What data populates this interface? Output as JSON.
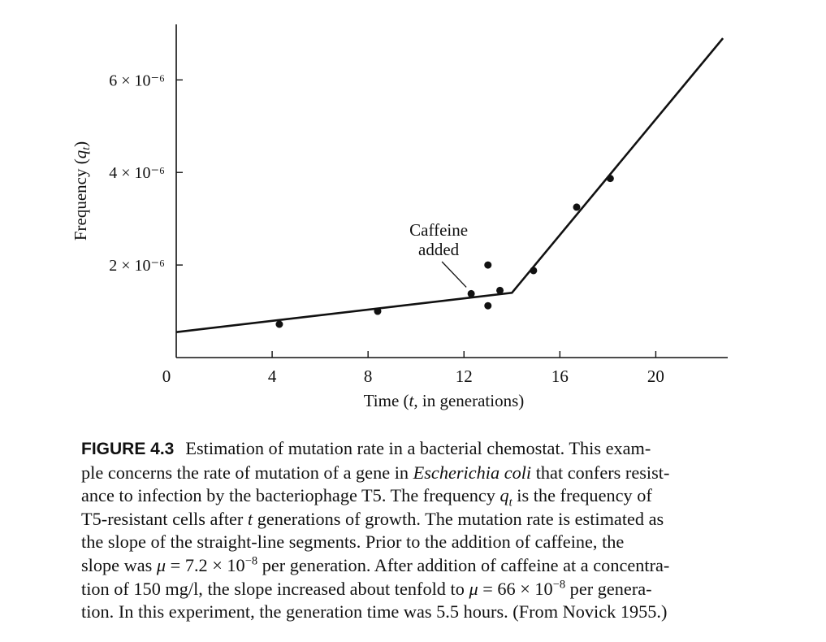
{
  "chart_data": {
    "type": "scatter",
    "title": "",
    "xlabel": "Time (t, in generations)",
    "ylabel": "Frequency (q_t)",
    "xlim": [
      0,
      23
    ],
    "ylim": [
      0,
      7.2e-06
    ],
    "x_ticks": [
      0,
      4,
      8,
      12,
      16,
      20
    ],
    "y_ticks": [
      {
        "value": 2e-06,
        "label": "2 × 10⁻⁶"
      },
      {
        "value": 4e-06,
        "label": "4 × 10⁻⁶"
      },
      {
        "value": 6e-06,
        "label": "6 × 10⁻⁶"
      }
    ],
    "points": [
      {
        "x": 4.3,
        "y": 7.2e-07
      },
      {
        "x": 8.4,
        "y": 1e-06
      },
      {
        "x": 12.3,
        "y": 1.38e-06
      },
      {
        "x": 13.0,
        "y": 1.12e-06
      },
      {
        "x": 13.0,
        "y": 2e-06
      },
      {
        "x": 13.5,
        "y": 1.45e-06
      },
      {
        "x": 14.9,
        "y": 1.88e-06
      },
      {
        "x": 16.7,
        "y": 3.25e-06
      },
      {
        "x": 18.1,
        "y": 3.87e-06
      }
    ],
    "fit_line": [
      {
        "x": 0,
        "y": 5.5e-07
      },
      {
        "x": 14.0,
        "y": 1.4e-06
      },
      {
        "x": 22.8,
        "y": 6.9e-06
      }
    ],
    "annotations": [
      {
        "text": [
          "Caffeine",
          "added"
        ],
        "points_to": {
          "x": 12.3,
          "y": 1.38e-06
        }
      }
    ],
    "grid": false
  },
  "caption": {
    "label": "FIGURE 4.3"
  }
}
